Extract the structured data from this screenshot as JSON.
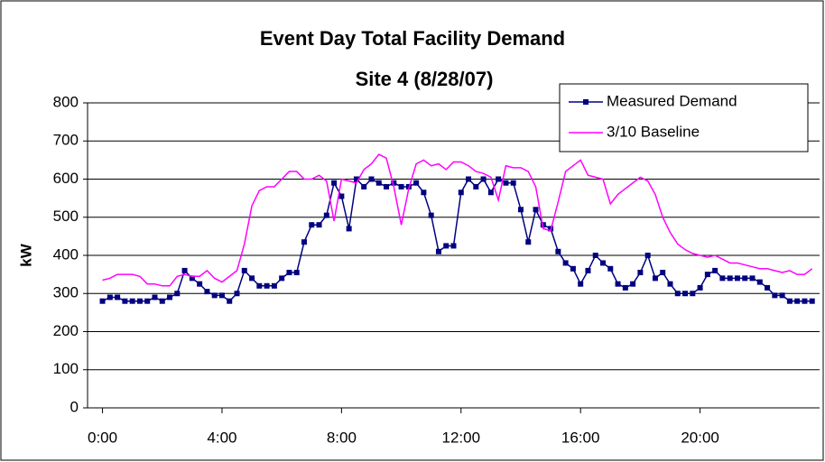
{
  "chart_data": {
    "type": "line",
    "title": [
      "Event Day Total Facility Demand",
      "Site 4 (8/28/07)"
    ],
    "y_label": "kW",
    "x": [
      0,
      0.25,
      0.5,
      0.75,
      1,
      1.25,
      1.5,
      1.75,
      2,
      2.25,
      2.5,
      2.75,
      3,
      3.25,
      3.5,
      3.75,
      4,
      4.25,
      4.5,
      4.75,
      5,
      5.25,
      5.5,
      5.75,
      6,
      6.25,
      6.5,
      6.75,
      7,
      7.25,
      7.5,
      7.75,
      8,
      8.25,
      8.5,
      8.75,
      9,
      9.25,
      9.5,
      9.75,
      10,
      10.25,
      10.5,
      10.75,
      11,
      11.25,
      11.5,
      11.75,
      12,
      12.25,
      12.5,
      12.75,
      13,
      13.25,
      13.5,
      13.75,
      14,
      14.25,
      14.5,
      14.75,
      15,
      15.25,
      15.5,
      15.75,
      16,
      16.25,
      16.5,
      16.75,
      17,
      17.25,
      17.5,
      17.75,
      18,
      18.25,
      18.5,
      18.75,
      19,
      19.25,
      19.5,
      19.75,
      20,
      20.25,
      20.5,
      20.75,
      21,
      21.25,
      21.5,
      21.75,
      22,
      22.25,
      22.5,
      22.75,
      23,
      23.25,
      23.5,
      23.75
    ],
    "series": [
      {
        "name": "Measured Demand",
        "color": "#000080",
        "marker": "square",
        "values": [
          280,
          290,
          290,
          280,
          280,
          280,
          280,
          290,
          280,
          290,
          300,
          360,
          340,
          325,
          305,
          295,
          295,
          280,
          300,
          360,
          340,
          320,
          320,
          320,
          340,
          355,
          355,
          435,
          480,
          480,
          505,
          590,
          555,
          470,
          600,
          580,
          600,
          590,
          580,
          590,
          580,
          580,
          590,
          565,
          505,
          410,
          425,
          425,
          565,
          600,
          580,
          600,
          565,
          600,
          590,
          590,
          520,
          435,
          520,
          480,
          470,
          410,
          380,
          365,
          325,
          360,
          400,
          380,
          365,
          325,
          315,
          325,
          355,
          400,
          340,
          355,
          325,
          300,
          300,
          300,
          315,
          350,
          360,
          340,
          340,
          340,
          340,
          340,
          330,
          315,
          295,
          295,
          280,
          280,
          280,
          280
        ]
      },
      {
        "name": "3/10 Baseline",
        "color": "#ff00ff",
        "values": [
          335,
          340,
          350,
          350,
          350,
          345,
          325,
          325,
          320,
          320,
          345,
          350,
          345,
          345,
          360,
          340,
          330,
          345,
          360,
          430,
          530,
          570,
          580,
          580,
          600,
          620,
          620,
          600,
          600,
          610,
          595,
          490,
          600,
          595,
          590,
          625,
          640,
          665,
          655,
          580,
          480,
          575,
          640,
          650,
          635,
          640,
          625,
          645,
          645,
          635,
          620,
          615,
          605,
          545,
          635,
          630,
          630,
          620,
          580,
          470,
          465,
          540,
          620,
          635,
          650,
          610,
          605,
          600,
          535,
          560,
          575,
          590,
          605,
          595,
          560,
          500,
          460,
          430,
          415,
          405,
          400,
          395,
          400,
          390,
          380,
          380,
          375,
          370,
          365,
          365,
          360,
          355,
          360,
          350,
          350,
          365
        ]
      }
    ],
    "xlim": [
      -0.5,
      24
    ],
    "xticks": [
      {
        "value": 0,
        "label": "0:00"
      },
      {
        "value": 4,
        "label": "4:00"
      },
      {
        "value": 8,
        "label": "8:00"
      },
      {
        "value": 12,
        "label": "12:00"
      },
      {
        "value": 16,
        "label": "16:00"
      },
      {
        "value": 20,
        "label": "20:00"
      }
    ],
    "ylim": [
      0,
      800
    ],
    "yticks": [
      0,
      100,
      200,
      300,
      400,
      500,
      600,
      700,
      800
    ],
    "grid": true,
    "legend": "upper right"
  }
}
